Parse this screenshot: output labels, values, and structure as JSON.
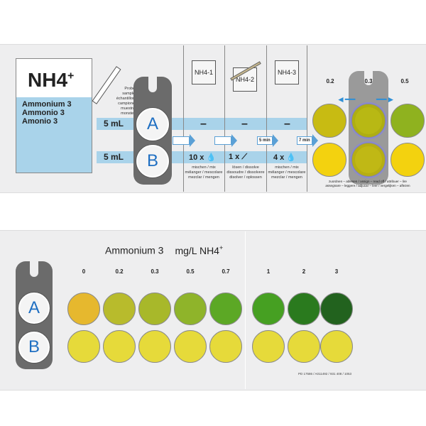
{
  "top": {
    "title": "NH4",
    "title_sup": "+",
    "names": [
      "Ammonium 3",
      "Ammonio 3",
      "Amonio 3"
    ],
    "sample_label": [
      "Probe",
      "sample",
      "échantillon",
      "campione",
      "muestra",
      "monster"
    ],
    "volume_a": "5 mL",
    "volume_b": "5 mL",
    "well_a": "A",
    "well_b": "B",
    "steps": [
      {
        "bottle": "NH4-1",
        "dash": "–",
        "dose": "10 x",
        "action": [
          "mischen / mix",
          "mélanger / mescolare",
          "mezclar / mengen"
        ]
      },
      {
        "bottle": "NH4-2",
        "dash": "–",
        "dose": "1 x",
        "action": [
          "lösen / dissolve",
          "dissoudre / dissolvere",
          "disolver / oplossen"
        ]
      },
      {
        "bottle": "NH4-3",
        "dash": "–",
        "dose": "4 x",
        "action": [
          "mischen / mix",
          "mélanger / mescolare",
          "mezclar / mengen"
        ]
      }
    ],
    "wait_1": "5 min",
    "wait_2": "7 min",
    "compare_values": [
      "0.2",
      "0.3",
      "0.5"
    ],
    "compare_colors": {
      "top": [
        "#c8bb12",
        "#b8b814",
        "#8fb21f"
      ],
      "bottom": [
        "#f3d20f",
        "#c0b815",
        "#f3d20f"
      ]
    },
    "assign_text": [
      "zuordnen – ablesen / assign – read off / attribuer – lire",
      "assegnare – leggere / adjucar – leer / vergelijken – aflezen"
    ]
  },
  "bottom": {
    "title": "Ammonium 3",
    "unit": "mg/L NH4",
    "unit_sup": "+",
    "well_a": "A",
    "well_b": "B",
    "scale": [
      {
        "value": "0",
        "color": "#e6b82e"
      },
      {
        "value": "0.2",
        "color": "#b8bb2c"
      },
      {
        "value": "0.3",
        "color": "#a8b82a"
      },
      {
        "value": "0.5",
        "color": "#8fb42a"
      },
      {
        "value": "0.7",
        "color": "#5ca825"
      },
      {
        "value": "1",
        "color": "#46a022"
      },
      {
        "value": "2",
        "color": "#2a7a1e"
      },
      {
        "value": "3",
        "color": "#22621e"
      }
    ],
    "reference_color": "#e6da3a",
    "code": "PD 17586 / A011492 / 931 408 / 1053"
  }
}
